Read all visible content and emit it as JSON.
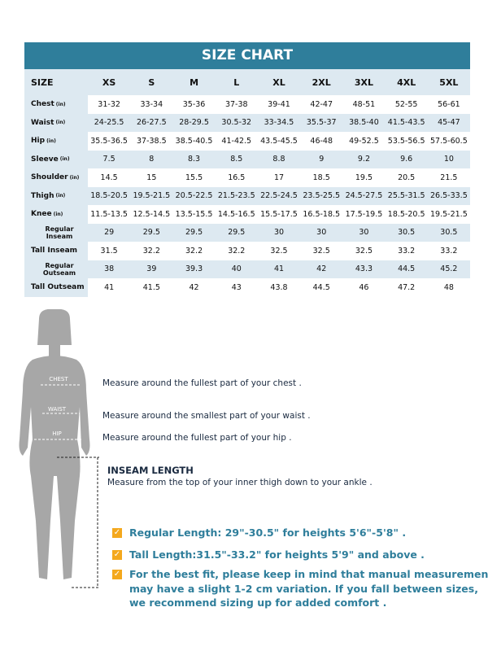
{
  "table": {
    "title": "SIZE CHART",
    "header": [
      "SIZE",
      "XS",
      "S",
      "M",
      "L",
      "XL",
      "2XL",
      "3XL",
      "4XL",
      "5XL"
    ],
    "rows": [
      {
        "label": "Chest",
        "unit": "(in)",
        "cells": [
          "31-32",
          "33-34",
          "35-36",
          "37-38",
          "39-41",
          "42-47",
          "48-51",
          "52-55",
          "56-61"
        ]
      },
      {
        "label": "Waist",
        "unit": "(in)",
        "cells": [
          "24-25.5",
          "26-27.5",
          "28-29.5",
          "30.5-32",
          "33-34.5",
          "35.5-37",
          "38.5-40",
          "41.5-43.5",
          "45-47"
        ]
      },
      {
        "label": "Hip",
        "unit": "(in)",
        "cells": [
          "35.5-36.5",
          "37-38.5",
          "38.5-40.5",
          "41-42.5",
          "43.5-45.5",
          "46-48",
          "49-52.5",
          "53.5-56.5",
          "57.5-60.5"
        ]
      },
      {
        "label": "Sleeve",
        "unit": "(in)",
        "cells": [
          "7.5",
          "8",
          "8.3",
          "8.5",
          "8.8",
          "9",
          "9.2",
          "9.6",
          "10"
        ]
      },
      {
        "label": "Shoulder",
        "unit": "(in)",
        "cells": [
          "14.5",
          "15",
          "15.5",
          "16.5",
          "17",
          "18.5",
          "19.5",
          "20.5",
          "21.5"
        ]
      },
      {
        "label": "Thigh",
        "unit": "(in)",
        "cells": [
          "18.5-20.5",
          "19.5-21.5",
          "20.5-22.5",
          "21.5-23.5",
          "22.5-24.5",
          "23.5-25.5",
          "24.5-27.5",
          "25.5-31.5",
          "26.5-33.5"
        ]
      },
      {
        "label": "Knee",
        "unit": "(in)",
        "cells": [
          "11.5-13.5",
          "12.5-14.5",
          "13.5-15.5",
          "14.5-16.5",
          "15.5-17.5",
          "16.5-18.5",
          "17.5-19.5",
          "18.5-20.5",
          "19.5-21.5"
        ]
      },
      {
        "label": "Regular Inseam",
        "cells": [
          "29",
          "29.5",
          "29.5",
          "29.5",
          "30",
          "30",
          "30",
          "30.5",
          "30.5"
        ]
      },
      {
        "label": "Tall Inseam",
        "cells": [
          "31.5",
          "32.2",
          "32.2",
          "32.2",
          "32.5",
          "32.5",
          "32.5",
          "33.2",
          "33.2"
        ]
      },
      {
        "label": "Regular Outseam",
        "cells": [
          "38",
          "39",
          "39.3",
          "40",
          "41",
          "42",
          "43.3",
          "44.5",
          "45.2"
        ]
      },
      {
        "label": "Tall Outseam",
        "cells": [
          "41",
          "41.5",
          "42",
          "43",
          "43.8",
          "44.5",
          "46",
          "47.2",
          "48"
        ]
      }
    ]
  },
  "figure": {
    "labels": [
      "CHEST",
      "WAIST",
      "HIP"
    ]
  },
  "instructions": [
    "Measure around the fullest part of your chest .",
    "Measure around the smallest part of your waist .",
    "Measure around the fullest part of your hip ."
  ],
  "inseam": {
    "heading": "INSEAM LENGTH",
    "text": "Measure from the top of your inner thigh down to your ankle ."
  },
  "notes": [
    [
      "Regular Length: 29\"-30.5\" for heights 5'6\"-5'8\" ."
    ],
    [
      "Tall Length:31.5\"-33.2\" for heights 5'9\" and above ."
    ],
    [
      "For the best fit, please keep in mind that manual measurements",
      "may have a slight 1-2 cm variation. If you fall between sizes,",
      "we recommend sizing up for added comfort ."
    ]
  ]
}
